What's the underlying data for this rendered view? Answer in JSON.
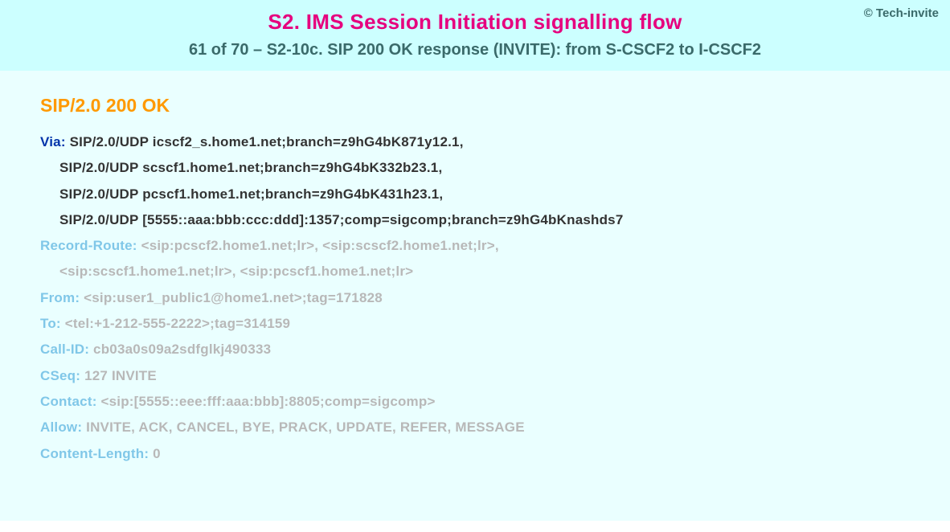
{
  "copyright": "© Tech-invite",
  "title": "S2. IMS Session Initiation signalling flow",
  "subtitle": "61 of 70 – S2-10c. SIP 200 OK response (INVITE): from S-CSCF2 to I-CSCF2",
  "status_line": "SIP/2.0 200 OK",
  "colors": {
    "header_bg": "#ccffff",
    "body_bg": "#eaffff",
    "title_color": "#e6007e",
    "subtitle_color": "#3a6a6a",
    "status_color": "#ff9900",
    "dark_name": "#0033aa",
    "dark_val": "#333333",
    "light_name": "#80c7e8",
    "light_val": "#b8b8b8"
  },
  "headers": [
    {
      "name": "Via",
      "style": "dark",
      "value": "SIP/2.0/UDP icscf2_s.home1.net;branch=z9hG4bK871y12.1,",
      "cont": [
        "SIP/2.0/UDP scscf1.home1.net;branch=z9hG4bK332b23.1,",
        "SIP/2.0/UDP pcscf1.home1.net;branch=z9hG4bK431h23.1,",
        "SIP/2.0/UDP [5555::aaa:bbb:ccc:ddd]:1357;comp=sigcomp;branch=z9hG4bKnashds7"
      ]
    },
    {
      "name": "Record-Route",
      "style": "light",
      "value": "<sip:pcscf2.home1.net;lr>, <sip:scscf2.home1.net;lr>,",
      "cont": [
        "<sip:scscf1.home1.net;lr>, <sip:pcscf1.home1.net;lr>"
      ]
    },
    {
      "name": "From",
      "style": "light",
      "value": "<sip:user1_public1@home1.net>;tag=171828"
    },
    {
      "name": "To",
      "style": "light",
      "value": "<tel:+1-212-555-2222>;tag=314159"
    },
    {
      "name": "Call-ID",
      "style": "light",
      "value": "cb03a0s09a2sdfglkj490333"
    },
    {
      "name": "CSeq",
      "style": "light",
      "value": "127 INVITE"
    },
    {
      "name": "Contact",
      "style": "light",
      "value": "<sip:[5555::eee:fff:aaa:bbb]:8805;comp=sigcomp>"
    },
    {
      "name": "Allow",
      "style": "light",
      "value": "INVITE, ACK, CANCEL, BYE, PRACK, UPDATE, REFER, MESSAGE"
    },
    {
      "name": "Content-Length",
      "style": "light",
      "value": "0"
    }
  ]
}
